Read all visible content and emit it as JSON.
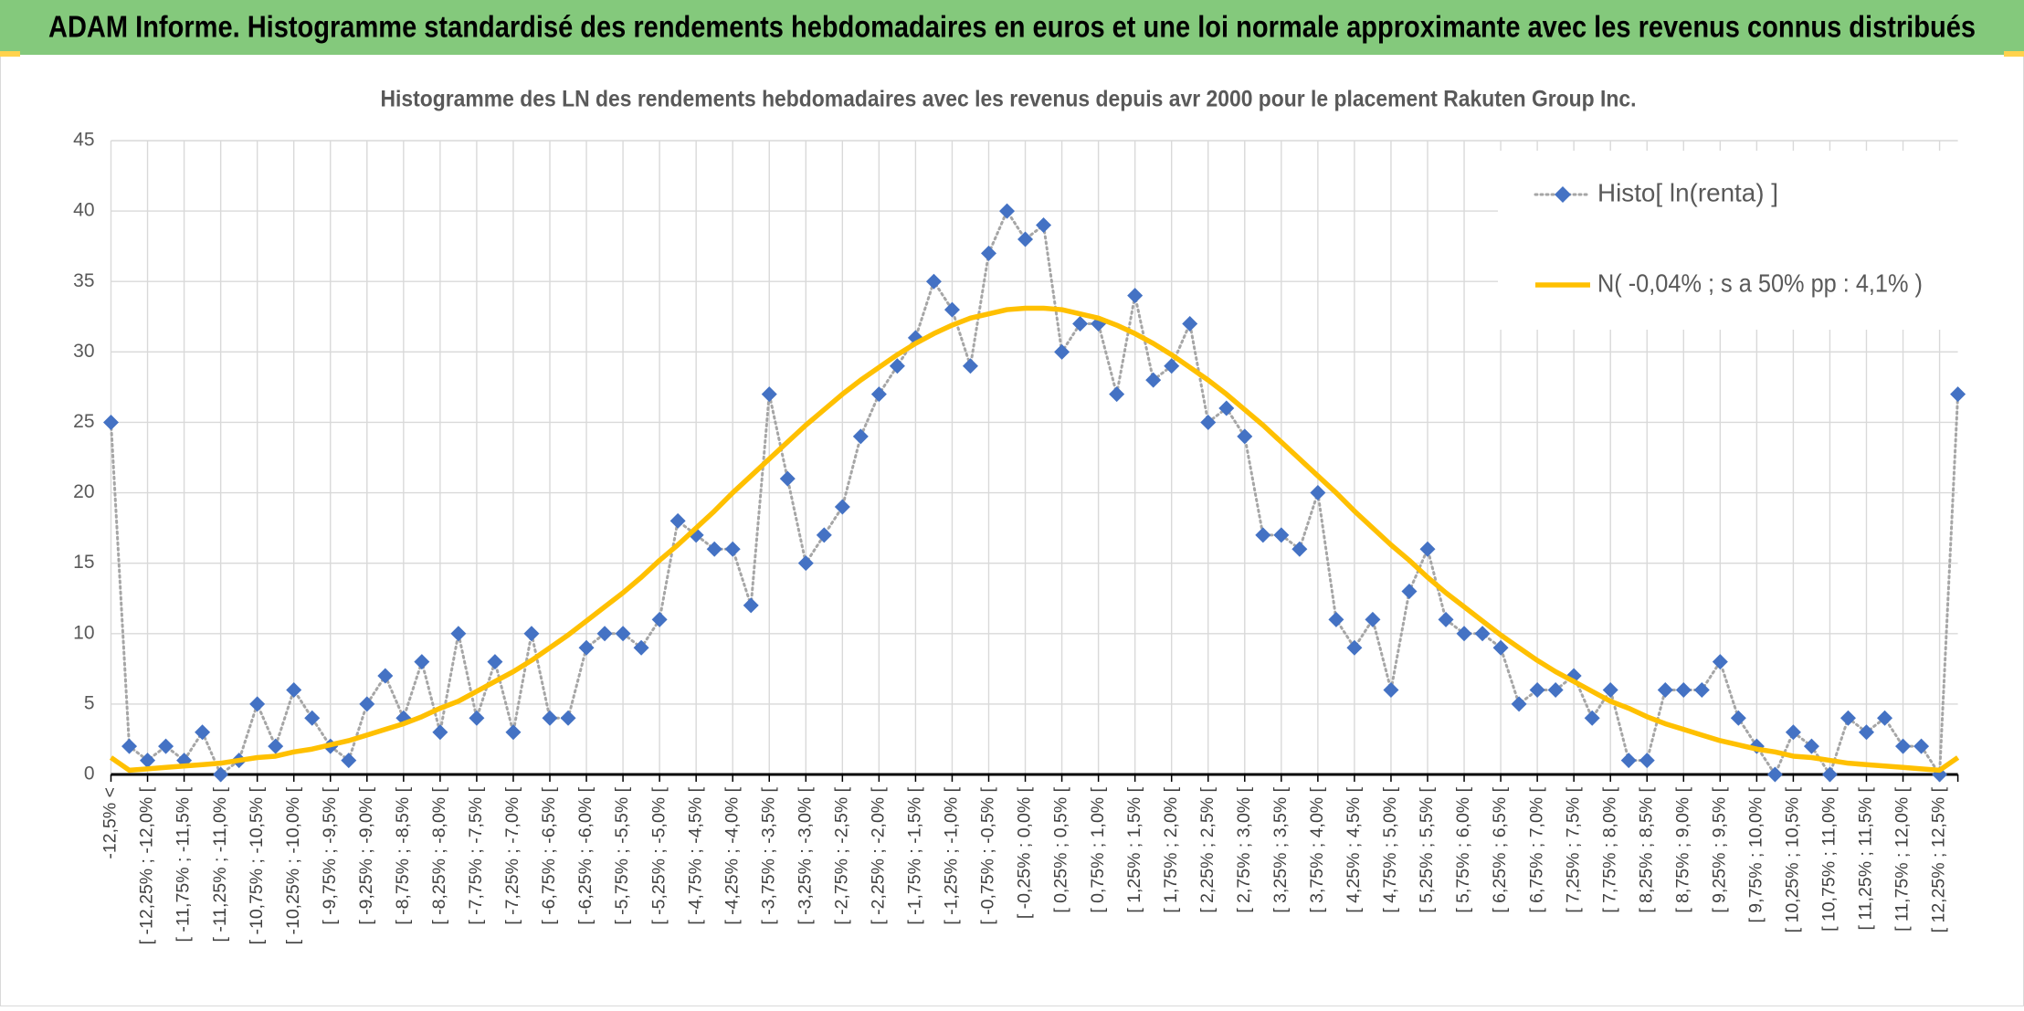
{
  "chart_data": {
    "type": "line",
    "title": "ADAM Informe. Histogramme standardisé des rendements hebdomadaires en euros et une loi normale approximante avec les revenus connus distribués",
    "subtitle": "Histogramme des LN des rendements hebdomadaires avec les revenus depuis avr 2000 pour le placement Rakuten Group Inc.",
    "categories": [
      "-12,5% <",
      null,
      "[ -12,25% ; -12,0% [",
      null,
      "[ -11,75% ; -11,5% [",
      null,
      "[ -11,25% ; -11,0% [",
      null,
      "[ -10,75% ; -10,5% [",
      null,
      "[ -10,25% ; -10,0% [",
      null,
      "[ -9,75% ; -9,5% [",
      null,
      "[ -9,25% ; -9,0% [",
      null,
      "[ -8,75% ; -8,5% [",
      null,
      "[ -8,25% ; -8,0% [",
      null,
      "[ -7,75% ; -7,5% [",
      null,
      "[ -7,25% ; -7,0% [",
      null,
      "[ -6,75% ; -6,5% [",
      null,
      "[ -6,25% ; -6,0% [",
      null,
      "[ -5,75% ; -5,5% [",
      null,
      "[ -5,25% ; -5,0% [",
      null,
      "[ -4,75% ; -4,5% [",
      null,
      "[ -4,25% ; -4,0% [",
      null,
      "[ -3,75% ; -3,5% [",
      null,
      "[ -3,25% ; -3,0% [",
      null,
      "[ -2,75% ; -2,5% [",
      null,
      "[ -2,25% ; -2,0% [",
      null,
      "[ -1,75% ; -1,5% [",
      null,
      "[ -1,25% ; -1,0% [",
      null,
      "[ -0,75% ; -0,5% [",
      null,
      "[ -0,25% ; 0,0% [",
      null,
      "[ 0,25% ; 0,5% [",
      null,
      "[ 0,75% ; 1,0% [",
      null,
      "[ 1,25% ; 1,5% [",
      null,
      "[ 1,75% ; 2,0% [",
      null,
      "[ 2,25% ; 2,5% [",
      null,
      "[ 2,75% ; 3,0% [",
      null,
      "[ 3,25% ; 3,5% [",
      null,
      "[ 3,75% ; 4,0% [",
      null,
      "[ 4,25% ; 4,5% [",
      null,
      "[ 4,75% ; 5,0% [",
      null,
      "[ 5,25% ; 5,5% [",
      null,
      "[ 5,75% ; 6,0% [",
      null,
      "[ 6,25% ; 6,5% [",
      null,
      "[ 6,75% ; 7,0% [",
      null,
      "[ 7,25% ; 7,5% [",
      null,
      "[ 7,75% ; 8,0% [",
      null,
      "[ 8,25% ; 8,5% [",
      null,
      "[ 8,75% ; 9,0% [",
      null,
      "[ 9,25% ; 9,5% [",
      null,
      "[ 9,75% ; 10,0% [",
      null,
      "[ 10,25% ; 10,5% [",
      null,
      "[ 10,75% ; 11,0% [",
      null,
      "[ 11,25% ; 11,5% [",
      null,
      "[ 11,75% ; 12,0% [",
      null,
      "[ 12,25% ; 12,5% [",
      null
    ],
    "series": [
      {
        "name": "Histo[ ln(renta) ]",
        "color": "#4472c4",
        "line_color": "#a6a6a6",
        "values": [
          25,
          2,
          1,
          2,
          1,
          3,
          0,
          1,
          5,
          2,
          6,
          4,
          2,
          1,
          5,
          7,
          4,
          8,
          3,
          10,
          4,
          8,
          3,
          10,
          4,
          4,
          9,
          10,
          10,
          9,
          11,
          18,
          17,
          16,
          16,
          12,
          27,
          21,
          15,
          17,
          19,
          24,
          27,
          29,
          31,
          35,
          33,
          29,
          37,
          40,
          38,
          39,
          30,
          32,
          32,
          27,
          34,
          28,
          29,
          32,
          25,
          26,
          24,
          17,
          17,
          16,
          20,
          11,
          9,
          11,
          6,
          13,
          16,
          11,
          10,
          10,
          9,
          5,
          6,
          6,
          7,
          4,
          6,
          1,
          1,
          6,
          6,
          6,
          8,
          4,
          2,
          0,
          3,
          2,
          0,
          4,
          3,
          4,
          2,
          2,
          0,
          27
        ]
      },
      {
        "name": "N( -0,04% ; s a 50% pp : 4,1% )",
        "color": "#ffc000",
        "values": [
          1.2,
          0.3,
          0.4,
          0.5,
          0.6,
          0.7,
          0.8,
          1.0,
          1.2,
          1.3,
          1.6,
          1.8,
          2.1,
          2.4,
          2.8,
          3.2,
          3.6,
          4.1,
          4.7,
          5.2,
          5.9,
          6.6,
          7.3,
          8.1,
          9.0,
          9.9,
          10.9,
          11.9,
          12.9,
          14.0,
          15.2,
          16.3,
          17.5,
          18.7,
          20.0,
          21.2,
          22.4,
          23.6,
          24.8,
          25.9,
          27.0,
          28.0,
          28.9,
          29.8,
          30.6,
          31.3,
          31.9,
          32.4,
          32.7,
          33.0,
          33.1,
          33.1,
          33.0,
          32.7,
          32.4,
          31.9,
          31.3,
          30.6,
          29.8,
          28.9,
          28.0,
          27.0,
          25.9,
          24.8,
          23.6,
          22.4,
          21.2,
          20.0,
          18.7,
          17.5,
          16.3,
          15.2,
          14.0,
          12.9,
          11.9,
          10.9,
          9.9,
          9.0,
          8.1,
          7.3,
          6.6,
          5.9,
          5.2,
          4.7,
          4.1,
          3.6,
          3.2,
          2.8,
          2.4,
          2.1,
          1.8,
          1.6,
          1.3,
          1.2,
          1.0,
          0.8,
          0.7,
          0.6,
          0.5,
          0.4,
          0.3,
          1.2
        ]
      }
    ],
    "ylim": [
      0,
      45
    ],
    "yticks": [
      0,
      5,
      10,
      15,
      20,
      25,
      30,
      35,
      40,
      45
    ],
    "grid": true,
    "legend": "upper right"
  }
}
